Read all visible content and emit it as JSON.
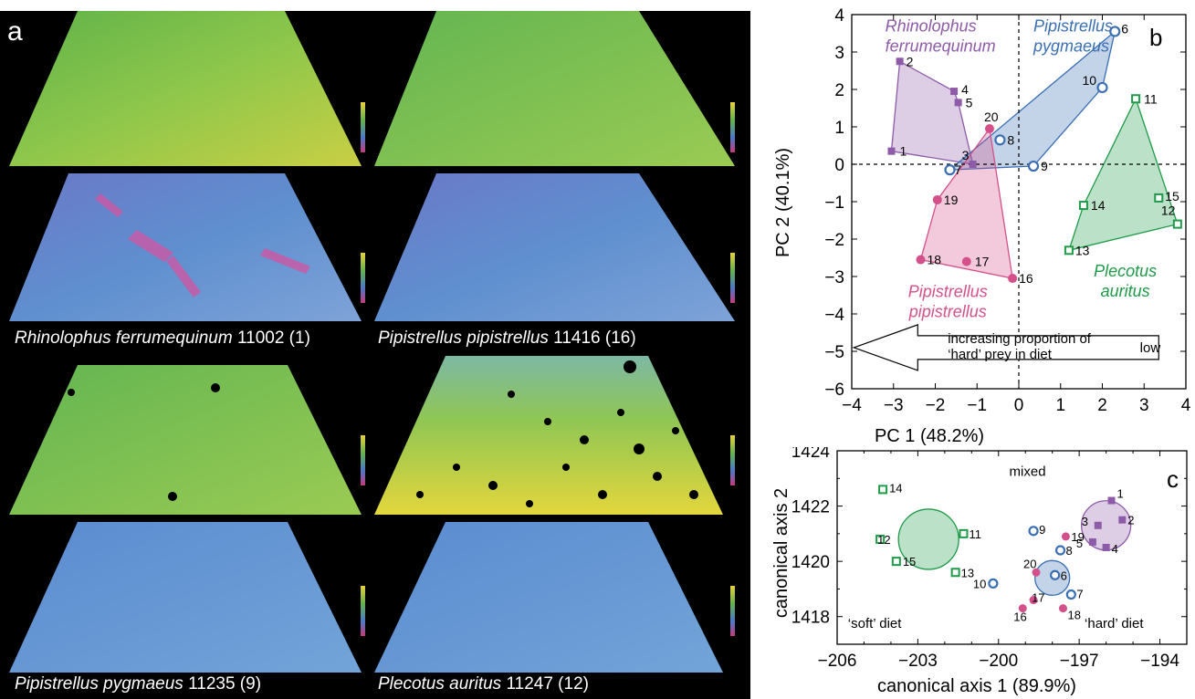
{
  "panel_a": {
    "letter": "a",
    "captions": [
      {
        "species": "Rhinolophus ferrumequinum",
        "rest": " 11002 (1)"
      },
      {
        "species": "Pipistrellus pipistrellus",
        "rest": " 11416 (16)"
      },
      {
        "species": "Pipistrellus pygmaeus",
        "rest": " 11235 (9)"
      },
      {
        "species": "Plecotus auritus",
        "rest": " 11247 (12)"
      }
    ]
  },
  "colors": {
    "rhinolophus": "#8e5ba8",
    "pip_pygmaeus": "#3a6fb4",
    "plecotus": "#1f9a48",
    "pip_pipistrellus": "#d3508a"
  },
  "chart_data": [
    {
      "type": "scatter",
      "panel": "b",
      "xlabel": "PC 1 (48.2%)",
      "ylabel": "PC 2 (40.1%)",
      "xlim": [
        -4,
        4
      ],
      "ylim": [
        -6,
        4
      ],
      "xticks": [
        "−4",
        "−3",
        "−2",
        "−1",
        "0",
        "1",
        "2",
        "3",
        "4"
      ],
      "yticks": [
        "4",
        "3",
        "2",
        "1",
        "0",
        "−1",
        "−2",
        "−3",
        "−4",
        "−5",
        "−6"
      ],
      "arrow_text": [
        "increasing proportion of",
        "‘hard’ prey in diet"
      ],
      "arrow_end_label": "low",
      "groups": [
        {
          "name": "Rhinolophus ferrumequinum",
          "label_lines": [
            "Rhinolophus",
            "ferrumequinum"
          ],
          "color_key": "rhinolophus",
          "marker": "square-filled",
          "points": [
            {
              "id": "1",
              "x": -3.05,
              "y": 0.35
            },
            {
              "id": "2",
              "x": -2.85,
              "y": 2.75
            },
            {
              "id": "3",
              "x": -1.1,
              "y": 0.0
            },
            {
              "id": "4",
              "x": -1.55,
              "y": 1.95
            },
            {
              "id": "5",
              "x": -1.45,
              "y": 1.65
            }
          ]
        },
        {
          "name": "Pipistrellus pygmaeus",
          "label_lines": [
            "Pipistrellus",
            "pygmaeus"
          ],
          "color_key": "pip_pygmaeus",
          "marker": "circle-open",
          "points": [
            {
              "id": "6",
              "x": 2.3,
              "y": 3.55
            },
            {
              "id": "7",
              "x": -1.65,
              "y": -0.15
            },
            {
              "id": "8",
              "x": -0.45,
              "y": 0.65
            },
            {
              "id": "9",
              "x": 0.35,
              "y": -0.05
            },
            {
              "id": "10",
              "x": 2.0,
              "y": 2.05
            }
          ]
        },
        {
          "name": "Plecotus auritus",
          "label_lines": [
            "Plecotus",
            "auritus"
          ],
          "color_key": "plecotus",
          "marker": "square-open",
          "points": [
            {
              "id": "11",
              "x": 2.8,
              "y": 1.75
            },
            {
              "id": "12",
              "x": 3.8,
              "y": -1.6
            },
            {
              "id": "13",
              "x": 1.2,
              "y": -2.3
            },
            {
              "id": "14",
              "x": 1.55,
              "y": -1.1
            },
            {
              "id": "15",
              "x": 3.35,
              "y": -0.9
            }
          ]
        },
        {
          "name": "Pipistrellus pipistrellus",
          "label_lines": [
            "Pipistrellus",
            "pipistrellus"
          ],
          "color_key": "pip_pipistrellus",
          "marker": "circle-filled",
          "points": [
            {
              "id": "16",
              "x": -0.15,
              "y": -3.05
            },
            {
              "id": "17",
              "x": -1.25,
              "y": -2.6
            },
            {
              "id": "18",
              "x": -2.35,
              "y": -2.55
            },
            {
              "id": "19",
              "x": -1.95,
              "y": -0.95
            },
            {
              "id": "20",
              "x": -0.7,
              "y": 0.95
            }
          ]
        }
      ]
    },
    {
      "type": "scatter",
      "panel": "c",
      "xlabel": "canonical axis 1 (89.9%)",
      "ylabel": "canonical axis 2",
      "xlim": [
        -206,
        -193
      ],
      "ylim": [
        1417,
        1424
      ],
      "xticks": [
        "−206",
        "−203",
        "−200",
        "−197",
        "−194"
      ],
      "yticks": [
        "1424",
        "1422",
        "1420",
        "1418"
      ],
      "annotations": {
        "top": "mixed",
        "left": "‘soft’ diet",
        "right": "‘hard’ diet"
      },
      "group_centroids": [
        {
          "color_key": "plecotus",
          "x": -202.6,
          "y": 1420.8
        },
        {
          "color_key": "rhinolophus",
          "x": -196.0,
          "y": 1421.3
        },
        {
          "color_key": "pip_pygmaeus",
          "x": -198.0,
          "y": 1419.4
        }
      ],
      "groups": [
        {
          "name": "Rhinolophus ferrumequinum",
          "color_key": "rhinolophus",
          "marker": "square-filled",
          "points": [
            {
              "id": "1",
              "x": -195.8,
              "y": 1422.2
            },
            {
              "id": "2",
              "x": -195.4,
              "y": 1421.5
            },
            {
              "id": "3",
              "x": -196.3,
              "y": 1421.3
            },
            {
              "id": "4",
              "x": -196.0,
              "y": 1420.5
            },
            {
              "id": "5",
              "x": -196.5,
              "y": 1420.7
            }
          ]
        },
        {
          "name": "Pipistrellus pygmaeus",
          "color_key": "pip_pygmaeus",
          "marker": "circle-open",
          "points": [
            {
              "id": "6",
              "x": -197.9,
              "y": 1419.5
            },
            {
              "id": "7",
              "x": -197.3,
              "y": 1418.8
            },
            {
              "id": "8",
              "x": -197.7,
              "y": 1420.4
            },
            {
              "id": "9",
              "x": -198.7,
              "y": 1421.1
            },
            {
              "id": "10",
              "x": -200.2,
              "y": 1419.2
            }
          ]
        },
        {
          "name": "Plecotus auritus",
          "color_key": "plecotus",
          "marker": "square-open",
          "points": [
            {
              "id": "11",
              "x": -201.3,
              "y": 1421.0
            },
            {
              "id": "12",
              "x": -204.4,
              "y": 1420.8
            },
            {
              "id": "13",
              "x": -201.6,
              "y": 1419.6
            },
            {
              "id": "14",
              "x": -204.3,
              "y": 1422.6
            },
            {
              "id": "15",
              "x": -203.8,
              "y": 1420.0
            }
          ]
        },
        {
          "name": "Pipistrellus pipistrellus",
          "color_key": "pip_pipistrellus",
          "marker": "circle-filled",
          "points": [
            {
              "id": "16",
              "x": -199.1,
              "y": 1418.3
            },
            {
              "id": "17",
              "x": -198.7,
              "y": 1418.6
            },
            {
              "id": "18",
              "x": -197.6,
              "y": 1418.3
            },
            {
              "id": "19",
              "x": -197.5,
              "y": 1420.9
            },
            {
              "id": "20",
              "x": -198.6,
              "y": 1419.6
            }
          ]
        }
      ]
    }
  ]
}
